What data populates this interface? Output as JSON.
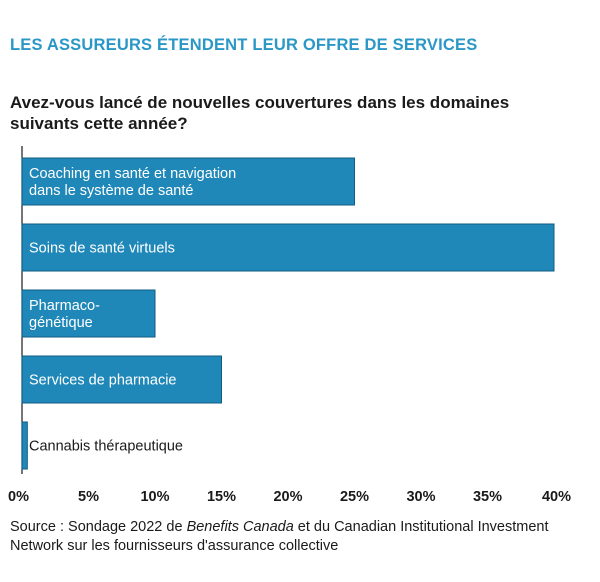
{
  "headline": "LES ASSUREURS ÉTENDENT LEUR OFFRE DE SERVICES",
  "question": "Avez-vous lancé de nouvelles couvertures dans les domaines suivants cette année?",
  "source": {
    "prefix": "Source : Sondage 2022 de ",
    "publication": "Benefits Canada",
    "suffix": " et du Canadian Institutional Investment Network sur les fournisseurs d'assurance collective"
  },
  "colors": {
    "headline": "#2a97c7",
    "bar": "#1f88b8",
    "bar_edge": "#0f5d82"
  },
  "chart_data": {
    "type": "bar",
    "orientation": "horizontal",
    "title": "",
    "categories": [
      [
        "Coaching en santé et navigation",
        "dans le système de santé"
      ],
      [
        "Soins de santé virtuels"
      ],
      [
        "Pharmaco-",
        "génétique"
      ],
      [
        "Services de pharmacie"
      ],
      [
        "Cannabis thérapeutique"
      ]
    ],
    "values": [
      25,
      40,
      10,
      15,
      0.4
    ],
    "xlim": [
      0,
      40
    ],
    "xticks": [
      0,
      5,
      10,
      15,
      20,
      25,
      30,
      35,
      40
    ],
    "tick_format": "%",
    "grid": false
  }
}
